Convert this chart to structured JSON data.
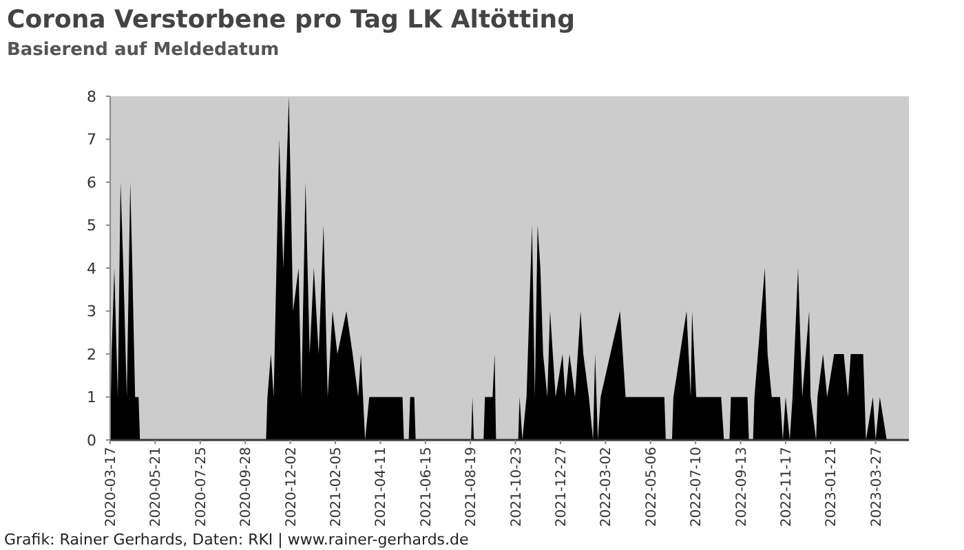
{
  "chart_data": {
    "type": "area",
    "title": "Corona Verstorbene pro Tag LK Altötting",
    "subtitle": "Basierend auf Meldedatum",
    "annotations": [
      "Grafik: Rainer Gerhards, Daten: RKI | www.rainer-gerhards.de"
    ],
    "x": [
      "2020-03-17",
      "2020-03-19",
      "2020-03-23",
      "2020-03-28",
      "2020-04-01",
      "2020-04-05",
      "2020-04-10",
      "2020-04-15",
      "2020-04-18",
      "2020-04-22",
      "2020-04-27",
      "2020-04-29",
      "2020-10-28",
      "2020-10-30",
      "2020-11-04",
      "2020-11-08",
      "2020-11-16",
      "2020-11-22",
      "2020-11-30",
      "2020-12-06",
      "2020-12-14",
      "2020-12-18",
      "2020-12-24",
      "2020-12-30",
      "2021-01-05",
      "2021-01-12",
      "2021-01-19",
      "2021-01-25",
      "2021-02-01",
      "2021-02-08",
      "2021-02-21",
      "2021-03-02",
      "2021-03-10",
      "2021-03-14",
      "2021-03-20",
      "2021-03-26",
      "2021-05-13",
      "2021-05-15",
      "2021-05-22",
      "2021-05-24",
      "2021-05-30",
      "2021-06-01",
      "2021-08-20",
      "2021-08-22",
      "2021-08-24",
      "2021-09-07",
      "2021-09-09",
      "2021-09-20",
      "2021-09-23",
      "2021-09-25",
      "2021-10-27",
      "2021-10-29",
      "2021-11-02",
      "2021-11-08",
      "2021-11-12",
      "2021-11-16",
      "2021-11-20",
      "2021-11-24",
      "2021-11-28",
      "2021-12-02",
      "2021-12-08",
      "2021-12-12",
      "2021-12-16",
      "2021-12-20",
      "2021-12-30",
      "2022-01-03",
      "2022-01-09",
      "2022-01-17",
      "2022-01-25",
      "2022-01-29",
      "2022-02-06",
      "2022-02-12",
      "2022-02-15",
      "2022-02-19",
      "2022-02-23",
      "2022-03-23",
      "2022-03-27",
      "2022-03-31",
      "2022-05-26",
      "2022-05-28",
      "2022-06-06",
      "2022-06-08",
      "2022-06-27",
      "2022-07-03",
      "2022-07-05",
      "2022-07-11",
      "2022-08-16",
      "2022-08-20",
      "2022-08-28",
      "2022-08-30",
      "2022-09-23",
      "2022-09-25",
      "2022-10-01",
      "2022-10-03",
      "2022-10-18",
      "2022-10-22",
      "2022-10-28",
      "2022-11-09",
      "2022-11-13",
      "2022-11-17",
      "2022-11-23",
      "2022-11-27",
      "2022-12-05",
      "2022-12-11",
      "2022-12-21",
      "2022-12-23",
      "2022-12-31",
      "2023-01-02",
      "2023-01-10",
      "2023-01-16",
      "2023-01-26",
      "2023-02-01",
      "2023-02-09",
      "2023-02-15",
      "2023-02-19",
      "2023-03-01",
      "2023-03-09",
      "2023-03-13",
      "2023-03-23",
      "2023-03-27",
      "2023-04-02",
      "2023-04-12"
    ],
    "series": [
      {
        "color": "#000000",
        "values": [
          0,
          2,
          4,
          1,
          6,
          4,
          1,
          6,
          4,
          1,
          1,
          0,
          0,
          1,
          2,
          1,
          7,
          4,
          8,
          3,
          4,
          1,
          6,
          2,
          4,
          2,
          5,
          1,
          3,
          2,
          3,
          2,
          1,
          2,
          0,
          1,
          1,
          0,
          0,
          1,
          1,
          0,
          0,
          1,
          0,
          0,
          1,
          1,
          2,
          0,
          0,
          1,
          0,
          1,
          3,
          5,
          1,
          5,
          4,
          2,
          1,
          3,
          2,
          1,
          2,
          1,
          2,
          1,
          3,
          2,
          1,
          0,
          2,
          0,
          1,
          3,
          2,
          1,
          1,
          0,
          0,
          1,
          3,
          1,
          3,
          1,
          1,
          0,
          0,
          1,
          1,
          0,
          0,
          1,
          4,
          2,
          1,
          1,
          0,
          1,
          0,
          1,
          4,
          1,
          3,
          1,
          0,
          1,
          2,
          1,
          2,
          2,
          2,
          1,
          2,
          2,
          2,
          0,
          1,
          0,
          1,
          0
        ]
      }
    ],
    "xlim": [
      "2020-03-17",
      "2023-05-14"
    ],
    "xticks": [
      "2020-03-17",
      "2020-05-21",
      "2020-07-25",
      "2020-09-28",
      "2020-12-02",
      "2021-02-05",
      "2021-04-11",
      "2021-06-15",
      "2021-08-19",
      "2021-10-23",
      "2021-12-27",
      "2022-03-02",
      "2022-05-06",
      "2022-07-10",
      "2022-09-13",
      "2022-11-17",
      "2023-01-21",
      "2023-03-27"
    ],
    "ylim": [
      0,
      8
    ],
    "yticks": [
      0,
      1,
      2,
      3,
      4,
      5,
      6,
      7,
      8
    ],
    "grid": false
  }
}
